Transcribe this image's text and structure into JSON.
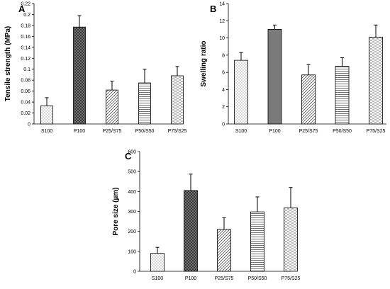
{
  "chart_data": [
    {
      "panel": "A",
      "type": "bar",
      "title": "",
      "xlabel": "",
      "ylabel": "Tensile strength (MPa)",
      "ylim": [
        0,
        0.22
      ],
      "yticks": [
        0,
        0.02,
        0.04,
        0.06,
        0.08,
        0.1,
        0.12,
        0.14,
        0.16,
        0.18,
        0.2,
        0.22
      ],
      "categories": [
        "S100",
        "P100",
        "P25/S75",
        "P50/S50",
        "P75/S25"
      ],
      "values": [
        0.033,
        0.177,
        0.062,
        0.075,
        0.088
      ],
      "errors": [
        0.015,
        0.021,
        0.016,
        0.025,
        0.017
      ],
      "patterns": [
        "dots",
        "crosshatch-dark",
        "diagonal",
        "horizontal",
        "dashes"
      ],
      "grid": false,
      "legend": "none"
    },
    {
      "panel": "B",
      "type": "bar",
      "title": "",
      "xlabel": "",
      "ylabel": "Swelling ratio",
      "ylim": [
        0,
        14
      ],
      "yticks": [
        0,
        2,
        4,
        6,
        8,
        10,
        12,
        14
      ],
      "categories": [
        "S100",
        "P100",
        "P25/S75",
        "P50/S50",
        "P75/S25"
      ],
      "values": [
        7.4,
        11.0,
        5.7,
        6.7,
        10.1
      ],
      "errors": [
        0.9,
        0.5,
        1.2,
        1.0,
        1.4
      ],
      "patterns": [
        "dots",
        "solid-gray",
        "diagonal",
        "horizontal",
        "dashes"
      ],
      "grid": false,
      "legend": "none"
    },
    {
      "panel": "C",
      "type": "bar",
      "title": "",
      "xlabel": "",
      "ylabel": "Pore size (µm)",
      "ylim": [
        0,
        600
      ],
      "yticks": [
        0,
        100,
        200,
        300,
        400,
        500,
        600
      ],
      "categories": [
        "S100",
        "P100",
        "P25/S75",
        "P50/S50",
        "P75/S25"
      ],
      "values": [
        90,
        405,
        210,
        298,
        318
      ],
      "errors": [
        30,
        82,
        58,
        75,
        102
      ],
      "patterns": [
        "dots",
        "crosshatch-dark",
        "diagonal",
        "horizontal",
        "dashes"
      ],
      "grid": false,
      "legend": "none"
    }
  ]
}
